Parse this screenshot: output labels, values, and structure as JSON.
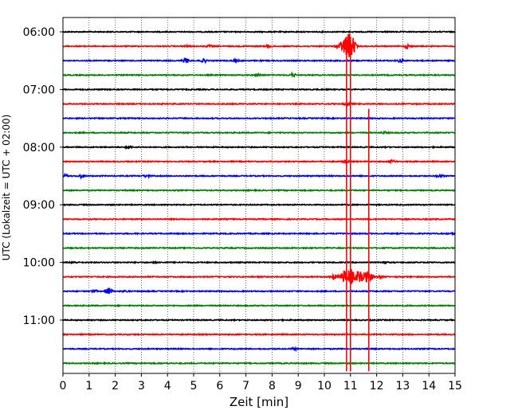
{
  "chart_data": {
    "type": "line",
    "title": "",
    "xlabel": "Zeit  [min]",
    "ylabel": "UTC (Lokalzeit = UTC + 02:00)",
    "xlim": [
      0,
      15
    ],
    "x_ticks": [
      0,
      1,
      2,
      3,
      4,
      5,
      6,
      7,
      8,
      9,
      10,
      11,
      12,
      13,
      14,
      15
    ],
    "x_tick_labels": [
      "0",
      "1",
      "2",
      "3",
      "4",
      "5",
      "6",
      "7",
      "8",
      "9",
      "10",
      "11",
      "12",
      "13",
      "14",
      "15"
    ],
    "y_ticks": [
      "06:00",
      "07:00",
      "08:00",
      "09:00",
      "10:00",
      "11:00"
    ],
    "y_tick_lines": [
      0,
      4,
      8,
      12,
      16,
      20
    ],
    "grid": "vertical dotted lines at each minute",
    "line_interval_minutes": 15,
    "colors": [
      "#000000",
      "#ff0000",
      "#0000ff",
      "#008000"
    ],
    "traces": [
      {
        "start": "06:00",
        "color": "#000000",
        "events": []
      },
      {
        "start": "06:15",
        "color": "#ff0000",
        "events": [
          {
            "t": 4.7,
            "amp": 0.15
          },
          {
            "t": 5.6,
            "amp": 0.2
          },
          {
            "t": 7.9,
            "amp": 0.25
          },
          {
            "t": 10.6,
            "amp": 0.7
          },
          {
            "t": 10.8,
            "amp": 1.9
          },
          {
            "t": 10.95,
            "amp": 2.6
          },
          {
            "t": 11.1,
            "amp": 1.5
          },
          {
            "t": 13.2,
            "amp": 0.4
          }
        ]
      },
      {
        "start": "06:30",
        "color": "#0000ff",
        "events": [
          {
            "t": 4.7,
            "amp": 0.55
          },
          {
            "t": 5.4,
            "amp": 0.35
          },
          {
            "t": 6.6,
            "amp": 0.2
          },
          {
            "t": 12.9,
            "amp": 0.35
          }
        ]
      },
      {
        "start": "06:45",
        "color": "#008000",
        "events": [
          {
            "t": 7.5,
            "amp": 0.2
          },
          {
            "t": 8.8,
            "amp": 0.4
          }
        ]
      },
      {
        "start": "07:00",
        "color": "#000000",
        "events": []
      },
      {
        "start": "07:15",
        "color": "#ff0000",
        "events": [
          {
            "t": 10.9,
            "amp": 0.6
          }
        ]
      },
      {
        "start": "07:30",
        "color": "#0000ff",
        "events": []
      },
      {
        "start": "07:45",
        "color": "#008000",
        "events": [
          {
            "t": 12.3,
            "amp": 0.2
          }
        ]
      },
      {
        "start": "08:00",
        "color": "#000000",
        "events": [
          {
            "t": 2.5,
            "amp": 0.2
          }
        ]
      },
      {
        "start": "08:15",
        "color": "#ff0000",
        "events": [
          {
            "t": 10.8,
            "amp": 0.3
          },
          {
            "t": 12.6,
            "amp": 0.3
          }
        ]
      },
      {
        "start": "08:30",
        "color": "#0000ff",
        "events": [
          {
            "t": 0.1,
            "amp": 0.3
          },
          {
            "t": 0.7,
            "amp": 0.35
          },
          {
            "t": 3.2,
            "amp": 0.3
          },
          {
            "t": 14.4,
            "amp": 0.35
          }
        ]
      },
      {
        "start": "08:45",
        "color": "#008000",
        "events": []
      },
      {
        "start": "09:00",
        "color": "#000000",
        "events": []
      },
      {
        "start": "09:15",
        "color": "#ff0000",
        "events": []
      },
      {
        "start": "09:30",
        "color": "#0000ff",
        "events": [
          {
            "t": 14.95,
            "amp": 0.2
          }
        ]
      },
      {
        "start": "09:45",
        "color": "#008000",
        "events": []
      },
      {
        "start": "10:00",
        "color": "#000000",
        "events": [
          {
            "t": 0.4,
            "amp": 0.15
          },
          {
            "t": 3.5,
            "amp": 0.15
          },
          {
            "t": 12.3,
            "amp": 0.2
          }
        ]
      },
      {
        "start": "10:15",
        "color": "#ff0000",
        "events": [
          {
            "t": 10.4,
            "amp": 0.5
          },
          {
            "t": 10.75,
            "amp": 1.5
          },
          {
            "t": 11.0,
            "amp": 2.1
          },
          {
            "t": 11.3,
            "amp": 1.6
          },
          {
            "t": 11.55,
            "amp": 1.3
          },
          {
            "t": 11.75,
            "amp": 0.8
          },
          {
            "t": 12.1,
            "amp": 0.3
          }
        ]
      },
      {
        "start": "10:30",
        "color": "#0000ff",
        "events": [
          {
            "t": 1.2,
            "amp": 0.25
          },
          {
            "t": 1.75,
            "amp": 0.9
          },
          {
            "t": 2.4,
            "amp": 0.2
          }
        ]
      },
      {
        "start": "10:45",
        "color": "#008000",
        "events": []
      },
      {
        "start": "11:00",
        "color": "#000000",
        "events": []
      },
      {
        "start": "11:15",
        "color": "#ff0000",
        "events": []
      },
      {
        "start": "11:30",
        "color": "#0000ff",
        "events": [
          {
            "t": 8.85,
            "amp": 0.2
          }
        ]
      },
      {
        "start": "11:45",
        "color": "#008000",
        "events": []
      }
    ],
    "vertical_events": [
      {
        "x": 10.85,
        "color": "#ff0000",
        "from_trace": 1,
        "to_trace": 23
      },
      {
        "x": 11.0,
        "color": "#ff0000",
        "from_trace": 1,
        "to_trace": 23
      },
      {
        "x": 11.7,
        "color": "#ff0000",
        "from_trace": 6,
        "to_trace": 23
      }
    ]
  }
}
